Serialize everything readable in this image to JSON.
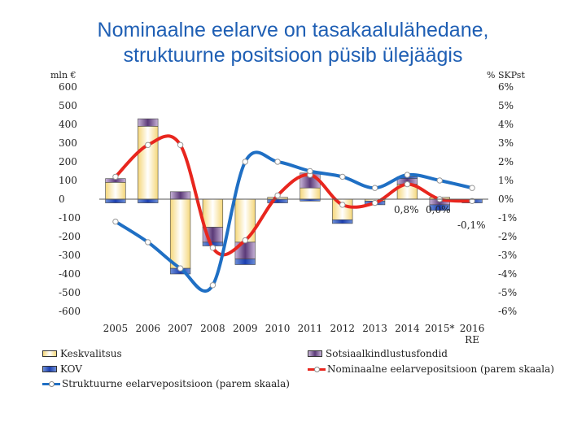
{
  "chart_data": {
    "type": "bar",
    "title_lines": [
      "Nominaalne eelarve on tasakaalulähedane,",
      "struktuurne positsioon püsib ülejäägis"
    ],
    "left_unit": "mln €",
    "right_unit": "% SKPst",
    "categories": [
      "2005",
      "2006",
      "2007",
      "2008",
      "2009",
      "2010",
      "2011",
      "2012",
      "2013",
      "2014",
      "2015*",
      "2016 RE"
    ],
    "category_labels": [
      [
        "2005"
      ],
      [
        "2006"
      ],
      [
        "2007"
      ],
      [
        "2008"
      ],
      [
        "2009"
      ],
      [
        "2010"
      ],
      [
        "2011"
      ],
      [
        "2012"
      ],
      [
        "2013"
      ],
      [
        "2014"
      ],
      [
        "2015*"
      ],
      [
        "2016",
        "RE"
      ]
    ],
    "left_axis": {
      "min": -600,
      "max": 600,
      "ticks": [
        "600",
        "500",
        "400",
        "300",
        "200",
        "100",
        "0",
        "-100",
        "-200",
        "-300",
        "-400",
        "-500",
        "-600"
      ]
    },
    "right_axis": {
      "min": -6,
      "max": 6,
      "ticks": [
        "6%",
        "5%",
        "4%",
        "3%",
        "2%",
        "1%",
        "0%",
        "-1%",
        "-2%",
        "-3%",
        "-4%",
        "-5%",
        "-6%"
      ]
    },
    "bar_series": [
      {
        "name": "Keskvalitsus",
        "color": "#f5d77a",
        "values": [
          90,
          390,
          -370,
          -150,
          -230,
          10,
          60,
          -110,
          -10,
          80,
          10,
          0
        ]
      },
      {
        "name": "Sotsiaalkindlustusfondid",
        "color": "#5b3a78",
        "values": [
          20,
          40,
          40,
          -80,
          -90,
          0,
          80,
          0,
          0,
          30,
          -30,
          0
        ]
      },
      {
        "name": "KOV",
        "color": "#1c3fb0",
        "values": [
          -20,
          -20,
          -30,
          -20,
          -30,
          -20,
          -10,
          -20,
          -20,
          10,
          -30,
          -20
        ]
      }
    ],
    "line_series": [
      {
        "name": "Nominaalne eelarvepositsioon (parem skaala)",
        "color": "#e8261e",
        "axis": "right",
        "values": [
          1.2,
          2.9,
          2.9,
          -2.6,
          -2.2,
          0.2,
          1.3,
          -0.3,
          -0.2,
          0.8,
          0.0,
          -0.1
        ]
      },
      {
        "name": "Struktuurne eelarvepositsioon (parem skaala)",
        "color": "#1f6fc4",
        "axis": "right",
        "values": [
          -1.2,
          -2.3,
          -3.7,
          -4.6,
          2.0,
          2.0,
          1.5,
          1.2,
          0.6,
          1.3,
          1.0,
          0.6
        ]
      }
    ],
    "annotations": [
      "0,8%",
      "0,0%",
      "-0,1%"
    ],
    "grid": false,
    "legend_position": "bottom"
  }
}
